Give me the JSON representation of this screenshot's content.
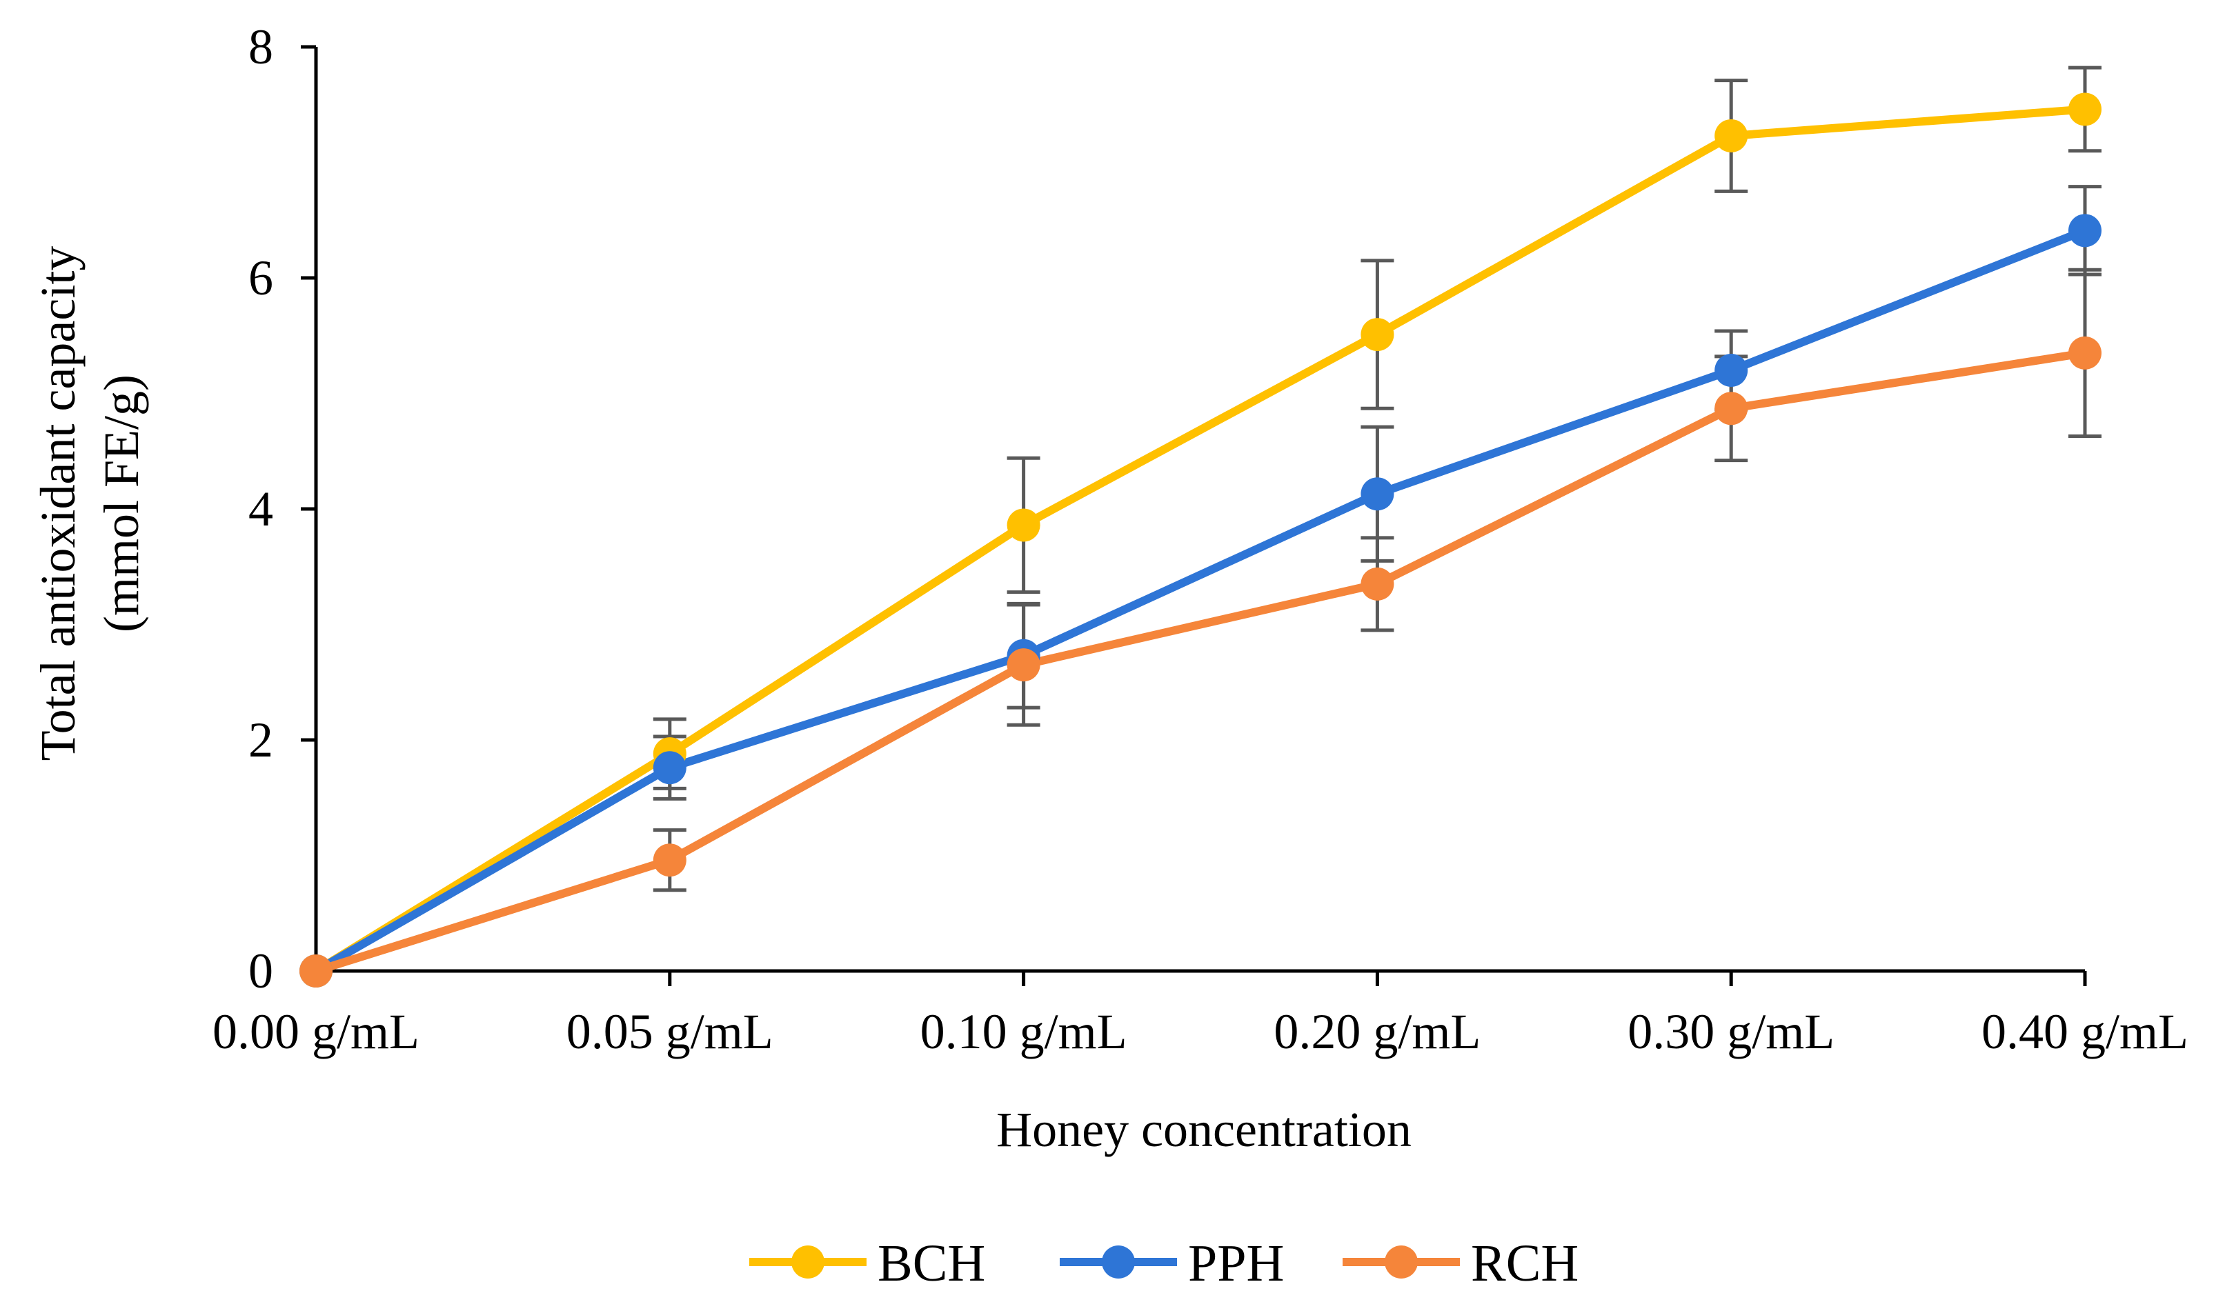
{
  "chart_data": {
    "type": "line",
    "title": "",
    "xlabel": "Honey concentration",
    "ylabel_line1": "Total antioxidant  capacity",
    "ylabel_line2": "(mmol FE/g)",
    "categories": [
      "0.00 g/mL",
      "0.05 g/mL",
      "0.10 g/mL",
      "0.20 g/mL",
      "0.30 g/mL",
      "0.40 g/mL"
    ],
    "ylim": [
      0,
      8
    ],
    "yticks": [
      0,
      2,
      4,
      6,
      8
    ],
    "grid": false,
    "legend_position": "bottom",
    "series": [
      {
        "name": "BCH",
        "color": "#FFC000",
        "values": [
          0,
          1.88,
          3.86,
          5.51,
          7.23,
          7.46
        ],
        "errors": [
          0,
          0.3,
          0.58,
          0.64,
          0.48,
          0.36
        ]
      },
      {
        "name": "PPH",
        "color": "#2E75D6",
        "values": [
          0,
          1.76,
          2.73,
          4.13,
          5.2,
          6.41
        ],
        "errors": [
          0,
          0.27,
          0.45,
          0.58,
          0.34,
          0.38
        ]
      },
      {
        "name": "RCH",
        "color": "#F5853A",
        "values": [
          0,
          0.96,
          2.65,
          3.35,
          4.87,
          5.35
        ],
        "errors": [
          0,
          0.26,
          0.52,
          0.4,
          0.45,
          0.72
        ]
      }
    ],
    "error_bar_color": "#595959"
  }
}
